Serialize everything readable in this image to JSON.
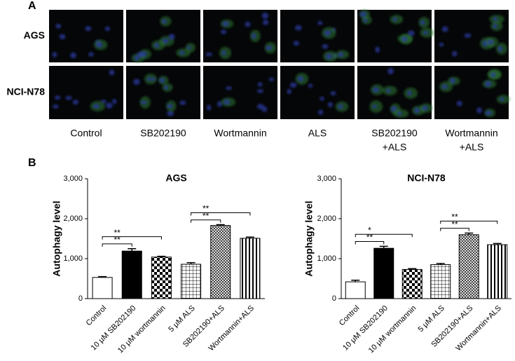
{
  "panel_a": {
    "label": "A",
    "rows": [
      "AGS",
      "NCI-N78"
    ],
    "columns": [
      [
        "Control"
      ],
      [
        "SB202190"
      ],
      [
        "Wortmannin"
      ],
      [
        "ALS"
      ],
      [
        "SB202190",
        "+ALS"
      ],
      [
        "Wortmannin",
        "+ALS"
      ]
    ]
  },
  "panel_b": {
    "label": "B"
  },
  "chart_data": [
    {
      "type": "bar",
      "title": "AGS",
      "ylabel": "Autophagy level",
      "categories": [
        "Control",
        "10 μM SB202190",
        "10 μM wortmannin",
        "5 μM ALS",
        "SB202190+ALS",
        "Wortmannin+ALS"
      ],
      "values": [
        530,
        1190,
        1040,
        860,
        1830,
        1510
      ],
      "errors": [
        20,
        60,
        20,
        40,
        20,
        30
      ],
      "patterns": [
        "none",
        "solid",
        "checker",
        "grid",
        "crosshatch",
        "vstripes"
      ],
      "color": "#000000",
      "ylim": [
        0,
        3000
      ],
      "yticks": [
        0,
        {
          "value": 1000,
          "label": "1,000"
        },
        {
          "value": 2000,
          "label": "2,000"
        },
        {
          "value": 3000,
          "label": "3,000"
        }
      ],
      "significance": [
        {
          "pair": [
            "Control",
            "10 μM SB202190"
          ],
          "label": "**"
        },
        {
          "pair": [
            "Control",
            "10 μM wortmannin"
          ],
          "label": "**"
        },
        {
          "pair": [
            "5 μM ALS",
            "SB202190+ALS"
          ],
          "label": "**"
        },
        {
          "pair": [
            "5 μM ALS",
            "Wortmannin+ALS"
          ],
          "label": "**"
        }
      ]
    },
    {
      "type": "bar",
      "title": "NCI-N78",
      "ylabel": "Autophagy level",
      "categories": [
        "Control",
        "10 μM SB202190",
        "10 μM wortmannin",
        "5 μM ALS",
        "SB202190+ALS",
        "Wortmannin+ALS"
      ],
      "values": [
        420,
        1260,
        730,
        850,
        1600,
        1350
      ],
      "errors": [
        40,
        50,
        20,
        30,
        40,
        30
      ],
      "patterns": [
        "none",
        "solid",
        "checker",
        "grid",
        "crosshatch",
        "vstripes"
      ],
      "color": "#000000",
      "ylim": [
        0,
        3000
      ],
      "yticks": [
        0,
        {
          "value": 1000,
          "label": "1,000"
        },
        {
          "value": 2000,
          "label": "2,000"
        },
        {
          "value": 3000,
          "label": "3,000"
        }
      ],
      "significance": [
        {
          "pair": [
            "Control",
            "10 μM SB202190"
          ],
          "label": "**"
        },
        {
          "pair": [
            "Control",
            "10 μM wortmannin"
          ],
          "label": "*"
        },
        {
          "pair": [
            "5 μM ALS",
            "SB202190+ALS"
          ],
          "label": "**"
        },
        {
          "pair": [
            "5 μM ALS",
            "Wortmannin+ALS"
          ],
          "label": "**"
        }
      ]
    }
  ]
}
